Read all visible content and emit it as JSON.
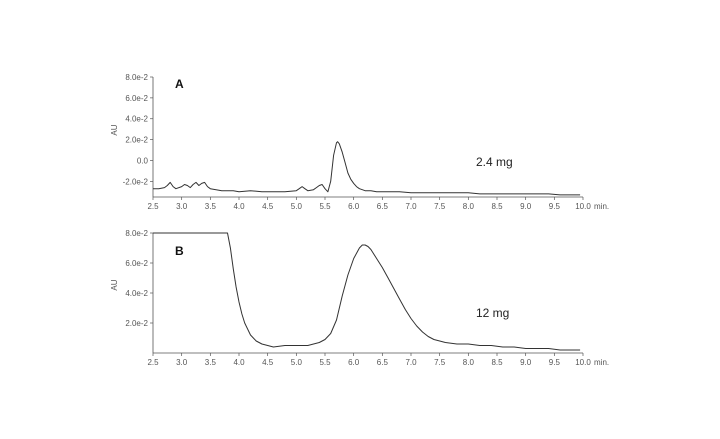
{
  "chart_data": [
    {
      "type": "line",
      "panel_label": "A",
      "annotation": "2.4 mg",
      "ylabel": "AU",
      "x_unit_label": "min.",
      "xlim": [
        2.5,
        10.0
      ],
      "ylim": [
        -0.035,
        0.08
      ],
      "x_ticks": [
        "2.5",
        "3.0",
        "3.5",
        "4.0",
        "4.5",
        "5.0",
        "5.5",
        "6.0",
        "6.5",
        "7.0",
        "7.5",
        "8.0",
        "8.5",
        "9.0",
        "9.5",
        "10.0"
      ],
      "y_ticks": [
        {
          "value": -0.02,
          "label": "-2.0e-2"
        },
        {
          "value": 0.0,
          "label": "0.0"
        },
        {
          "value": 0.02,
          "label": "2.0e-2"
        },
        {
          "value": 0.04,
          "label": "4.0e-2"
        },
        {
          "value": 0.06,
          "label": "6.0e-2"
        },
        {
          "value": 0.08,
          "label": "8.0e-2"
        }
      ],
      "grid": false,
      "series": [
        {
          "x": [
            2.5,
            2.6,
            2.7,
            2.75,
            2.8,
            2.85,
            2.9,
            3.0,
            3.05,
            3.1,
            3.15,
            3.2,
            3.25,
            3.3,
            3.35,
            3.4,
            3.45,
            3.5,
            3.6,
            3.7,
            3.8,
            3.9,
            4.0,
            4.2,
            4.4,
            4.6,
            4.8,
            5.0,
            5.05,
            5.1,
            5.15,
            5.2,
            5.3,
            5.35,
            5.4,
            5.45,
            5.5,
            5.55,
            5.6,
            5.65,
            5.7,
            5.72,
            5.75,
            5.8,
            5.85,
            5.9,
            5.95,
            6.0,
            6.05,
            6.1,
            6.15,
            6.2,
            6.3,
            6.4,
            6.6,
            6.8,
            7.0,
            7.2,
            7.4,
            7.6,
            7.8,
            8.0,
            8.2,
            8.4,
            8.6,
            8.8,
            9.0,
            9.2,
            9.4,
            9.6,
            9.8,
            9.95
          ],
          "y": [
            -0.027,
            -0.027,
            -0.026,
            -0.024,
            -0.021,
            -0.025,
            -0.027,
            -0.025,
            -0.023,
            -0.024,
            -0.026,
            -0.023,
            -0.021,
            -0.024,
            -0.022,
            -0.021,
            -0.025,
            -0.027,
            -0.028,
            -0.029,
            -0.029,
            -0.029,
            -0.03,
            -0.029,
            -0.03,
            -0.03,
            -0.03,
            -0.029,
            -0.027,
            -0.025,
            -0.027,
            -0.029,
            -0.028,
            -0.026,
            -0.024,
            -0.023,
            -0.027,
            -0.03,
            -0.02,
            0.005,
            0.017,
            0.018,
            0.016,
            0.008,
            -0.002,
            -0.012,
            -0.018,
            -0.022,
            -0.025,
            -0.027,
            -0.028,
            -0.029,
            -0.029,
            -0.03,
            -0.03,
            -0.03,
            -0.031,
            -0.031,
            -0.031,
            -0.031,
            -0.031,
            -0.031,
            -0.032,
            -0.032,
            -0.032,
            -0.032,
            -0.032,
            -0.032,
            -0.032,
            -0.033,
            -0.033,
            -0.033
          ]
        }
      ]
    },
    {
      "type": "line",
      "panel_label": "B",
      "annotation": "12 mg",
      "ylabel": "AU",
      "x_unit_label": "min.",
      "xlim": [
        2.5,
        10.0
      ],
      "ylim": [
        0.0,
        0.08
      ],
      "x_ticks": [
        "2.5",
        "3.0",
        "3.5",
        "4.0",
        "4.5",
        "5.0",
        "5.5",
        "6.0",
        "6.5",
        "7.0",
        "7.5",
        "8.0",
        "8.5",
        "9.0",
        "9.5",
        "10.0"
      ],
      "y_ticks": [
        {
          "value": 0.02,
          "label": "2.0e-2"
        },
        {
          "value": 0.04,
          "label": "4.0e-2"
        },
        {
          "value": 0.06,
          "label": "6.0e-2"
        },
        {
          "value": 0.08,
          "label": "8.0e-2"
        }
      ],
      "grid": false,
      "series": [
        {
          "x": [
            2.5,
            3.0,
            3.5,
            3.8,
            3.85,
            3.9,
            3.95,
            4.0,
            4.05,
            4.1,
            4.2,
            4.3,
            4.4,
            4.5,
            4.6,
            4.8,
            5.0,
            5.2,
            5.4,
            5.5,
            5.6,
            5.7,
            5.8,
            5.9,
            6.0,
            6.1,
            6.15,
            6.2,
            6.25,
            6.3,
            6.4,
            6.5,
            6.6,
            6.7,
            6.8,
            6.9,
            7.0,
            7.1,
            7.2,
            7.3,
            7.4,
            7.5,
            7.6,
            7.8,
            8.0,
            8.2,
            8.4,
            8.6,
            8.8,
            9.0,
            9.2,
            9.4,
            9.6,
            9.8,
            9.95
          ],
          "y": [
            0.08,
            0.08,
            0.08,
            0.08,
            0.07,
            0.056,
            0.044,
            0.034,
            0.026,
            0.02,
            0.012,
            0.008,
            0.006,
            0.005,
            0.004,
            0.005,
            0.005,
            0.005,
            0.007,
            0.009,
            0.013,
            0.022,
            0.038,
            0.052,
            0.063,
            0.07,
            0.072,
            0.072,
            0.071,
            0.069,
            0.063,
            0.057,
            0.05,
            0.043,
            0.036,
            0.029,
            0.023,
            0.018,
            0.014,
            0.011,
            0.009,
            0.008,
            0.007,
            0.006,
            0.006,
            0.005,
            0.005,
            0.004,
            0.004,
            0.003,
            0.003,
            0.003,
            0.002,
            0.002,
            0.002
          ]
        }
      ]
    }
  ]
}
